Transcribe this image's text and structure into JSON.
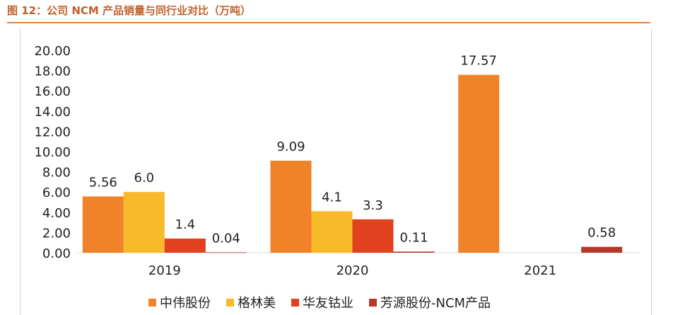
{
  "header": {
    "title": "图 12：公司 NCM 产品销量与同行业对比（万吨）"
  },
  "chart_data": {
    "type": "bar",
    "categories": [
      "2019",
      "2020",
      "2021"
    ],
    "ylim": [
      0,
      20
    ],
    "yticks": [
      "0.00",
      "2.00",
      "4.00",
      "6.00",
      "8.00",
      "10.00",
      "12.00",
      "14.00",
      "16.00",
      "18.00",
      "20.00"
    ],
    "grid": false,
    "legend_position": "bottom",
    "series": [
      {
        "name": "中伟股份",
        "color": "#f0822a",
        "values": [
          5.56,
          9.09,
          17.57
        ],
        "labels": [
          "5.56",
          "9.09",
          "17.57"
        ]
      },
      {
        "name": "格林美",
        "color": "#f8b92a",
        "values": [
          6.0,
          4.1,
          null
        ],
        "labels": [
          "6.0",
          "4.1",
          ""
        ]
      },
      {
        "name": "华友钴业",
        "color": "#e0411f",
        "values": [
          1.4,
          3.3,
          null
        ],
        "labels": [
          "1.4",
          "3.3",
          ""
        ]
      },
      {
        "name": "芳源股份-NCM产品",
        "color": "#b53a2c",
        "values": [
          0.04,
          0.11,
          0.58
        ],
        "labels": [
          "0.04",
          "0.11",
          "0.58"
        ]
      }
    ]
  }
}
